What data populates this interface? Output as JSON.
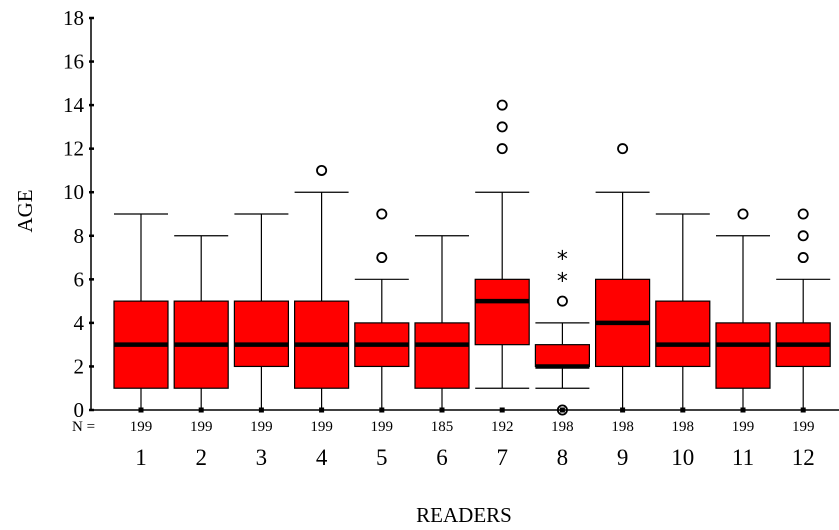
{
  "chart_data": {
    "type": "boxplot",
    "xlabel": "READERS",
    "ylabel": "AGE",
    "ylim": [
      0,
      18
    ],
    "yticks": [
      0,
      2,
      4,
      6,
      8,
      10,
      12,
      14,
      16,
      18
    ],
    "n_prefix": "N =",
    "box_color": "#ff0000",
    "grid": false,
    "categories": [
      "1",
      "2",
      "3",
      "4",
      "5",
      "6",
      "7",
      "8",
      "9",
      "10",
      "11",
      "12"
    ],
    "n": [
      "199",
      "199",
      "199",
      "199",
      "199",
      "185",
      "192",
      "198",
      "198",
      "198",
      "199",
      "199"
    ],
    "boxes": [
      {
        "min": 0,
        "q1": 1,
        "median": 3,
        "q3": 5,
        "max": 9,
        "outliers": [],
        "extremes": []
      },
      {
        "min": 0,
        "q1": 1,
        "median": 3,
        "q3": 5,
        "max": 8,
        "outliers": [],
        "extremes": []
      },
      {
        "min": 0,
        "q1": 2,
        "median": 3,
        "q3": 5,
        "max": 9,
        "outliers": [],
        "extremes": []
      },
      {
        "min": 0,
        "q1": 1,
        "median": 3,
        "q3": 5,
        "max": 10,
        "outliers": [
          11
        ],
        "extremes": []
      },
      {
        "min": 0,
        "q1": 2,
        "median": 3,
        "q3": 4,
        "max": 6,
        "outliers": [
          7,
          9
        ],
        "extremes": []
      },
      {
        "min": 0,
        "q1": 1,
        "median": 3,
        "q3": 4,
        "max": 8,
        "outliers": [],
        "extremes": []
      },
      {
        "min": 1,
        "q1": 3,
        "median": 5,
        "q3": 6,
        "max": 10,
        "outliers": [
          12,
          13,
          14
        ],
        "extremes": []
      },
      {
        "min": 1,
        "q1": 2,
        "median": 2,
        "q3": 3,
        "max": 4,
        "outliers": [
          0,
          5
        ],
        "extremes": [
          6,
          7
        ]
      },
      {
        "min": 0,
        "q1": 2,
        "median": 4,
        "q3": 6,
        "max": 10,
        "outliers": [
          12
        ],
        "extremes": []
      },
      {
        "min": 0,
        "q1": 2,
        "median": 3,
        "q3": 5,
        "max": 9,
        "outliers": [],
        "extremes": []
      },
      {
        "min": 0,
        "q1": 1,
        "median": 3,
        "q3": 4,
        "max": 8,
        "outliers": [
          9
        ],
        "extremes": []
      },
      {
        "min": 0,
        "q1": 2,
        "median": 3,
        "q3": 4,
        "max": 6,
        "outliers": [
          7,
          8,
          9
        ],
        "extremes": []
      }
    ]
  }
}
